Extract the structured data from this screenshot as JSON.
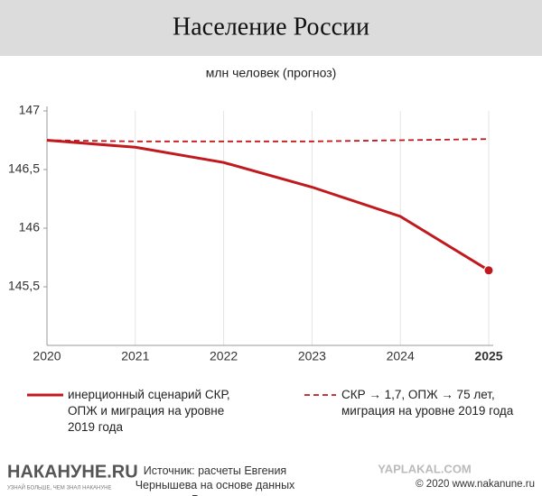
{
  "chart_data": {
    "type": "line",
    "title": "Население России",
    "subtitle": "млн человек (прогноз)",
    "x": [
      2020,
      2021,
      2022,
      2023,
      2024,
      2025
    ],
    "xlim": [
      2020,
      2025
    ],
    "xticks": [
      2020,
      2021,
      2022,
      2023,
      2024,
      2025
    ],
    "ylim": [
      145,
      147
    ],
    "yticks": [
      {
        "value": 145.5,
        "label": "145,5"
      },
      146,
      {
        "value": 146.5,
        "label": "146,5"
      },
      147
    ],
    "grid": true,
    "series": [
      {
        "name": "инерционный сценарий СКР, ОПЖ и миграция на уровне 2019 года",
        "color": "#c0191e",
        "style": "solid",
        "values": [
          146.75,
          146.69,
          146.56,
          146.35,
          146.1,
          145.64
        ]
      },
      {
        "name": "СКР → 1,7, ОПЖ → 75 лет, миграция на уровне 2019 года",
        "color": "#c0191e",
        "style": "dashed",
        "values": [
          146.75,
          146.74,
          146.74,
          146.74,
          146.75,
          146.76
        ]
      }
    ]
  },
  "footer": {
    "logo": "НАКАНУНЕ.RU",
    "slogan": "УЗНАЙ БОЛЬШЕ, ЧЕМ ЗНАЛ НАКАНУНЕ",
    "source": "Источник: расчеты Евгения Чернышева на основе данных Росстата",
    "watermark": "YAPLAKAL.COM",
    "copyright": "© 2020 www.nakanune.ru"
  }
}
